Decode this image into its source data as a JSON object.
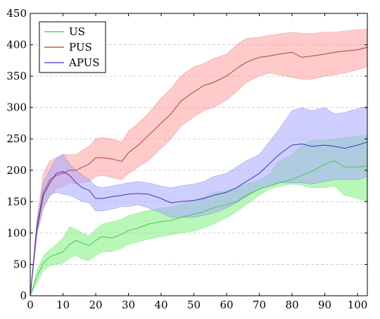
{
  "chart_data": {
    "type": "area",
    "title": "",
    "xlabel": "",
    "ylabel": "",
    "xlim": [
      0,
      103
    ],
    "ylim": [
      0,
      450
    ],
    "xticks": [
      0,
      10,
      20,
      30,
      40,
      50,
      60,
      70,
      80,
      90,
      100
    ],
    "yticks": [
      0,
      50,
      100,
      150,
      200,
      250,
      300,
      350,
      400,
      450
    ],
    "grid": "horizontal-dashed",
    "legend_position": "top-left",
    "series": [
      {
        "name": "US",
        "line_color": "#44cc44",
        "fill_color": "#7df07d",
        "x": [
          0,
          2,
          4,
          6,
          8,
          10,
          12,
          14,
          16,
          18,
          20,
          22,
          25,
          28,
          30,
          33,
          36,
          40,
          43,
          46,
          50,
          53,
          56,
          60,
          63,
          66,
          70,
          73,
          76,
          80,
          83,
          86,
          90,
          93,
          96,
          100,
          103
        ],
        "mean": [
          0,
          30,
          52,
          62,
          66,
          70,
          82,
          88,
          84,
          80,
          88,
          94,
          92,
          98,
          104,
          108,
          114,
          118,
          120,
          125,
          130,
          134,
          140,
          145,
          150,
          160,
          170,
          175,
          180,
          185,
          192,
          198,
          210,
          215,
          205,
          205,
          207
        ],
        "lower": [
          0,
          20,
          40,
          48,
          50,
          52,
          60,
          64,
          58,
          56,
          64,
          70,
          70,
          76,
          82,
          86,
          90,
          94,
          97,
          100,
          103,
          108,
          114,
          124,
          134,
          145,
          160,
          170,
          174,
          178,
          176,
          172,
          172,
          175,
          160,
          155,
          150
        ],
        "upper": [
          0,
          40,
          64,
          74,
          82,
          92,
          110,
          106,
          100,
          96,
          106,
          114,
          118,
          122,
          128,
          132,
          136,
          140,
          142,
          146,
          152,
          158,
          165,
          168,
          172,
          178,
          184,
          194,
          215,
          225,
          240,
          248,
          248,
          250,
          252,
          255,
          255
        ]
      },
      {
        "name": "PUS",
        "line_color": "#b04040",
        "fill_color": "#ff9e9e",
        "x": [
          0,
          2,
          4,
          6,
          8,
          10,
          12,
          14,
          16,
          18,
          20,
          22,
          25,
          28,
          30,
          33,
          36,
          40,
          43,
          46,
          50,
          53,
          56,
          60,
          63,
          66,
          70,
          73,
          76,
          80,
          83,
          86,
          90,
          93,
          96,
          100,
          103
        ],
        "mean": [
          0,
          110,
          165,
          185,
          192,
          195,
          200,
          200,
          205,
          210,
          220,
          220,
          218,
          214,
          228,
          240,
          255,
          275,
          290,
          310,
          325,
          335,
          340,
          350,
          362,
          372,
          380,
          382,
          385,
          388,
          380,
          382,
          385,
          388,
          390,
          392,
          396
        ],
        "lower": [
          0,
          100,
          140,
          160,
          170,
          175,
          180,
          178,
          180,
          182,
          190,
          192,
          188,
          185,
          195,
          205,
          215,
          235,
          250,
          270,
          285,
          295,
          300,
          312,
          325,
          340,
          350,
          355,
          352,
          348,
          345,
          345,
          350,
          352,
          355,
          360,
          365
        ],
        "upper": [
          0,
          120,
          195,
          215,
          220,
          225,
          225,
          225,
          232,
          238,
          250,
          252,
          250,
          245,
          262,
          275,
          290,
          315,
          330,
          350,
          365,
          370,
          378,
          385,
          400,
          410,
          412,
          415,
          417,
          420,
          418,
          418,
          420,
          420,
          422,
          424,
          425
        ]
      },
      {
        "name": "APUS",
        "line_color": "#3838c0",
        "fill_color": "#a8a8ff",
        "x": [
          0,
          2,
          4,
          6,
          8,
          10,
          12,
          14,
          16,
          18,
          20,
          22,
          25,
          28,
          30,
          33,
          36,
          40,
          43,
          46,
          50,
          53,
          56,
          60,
          63,
          66,
          70,
          73,
          76,
          80,
          83,
          86,
          90,
          93,
          96,
          100,
          103
        ],
        "mean": [
          0,
          105,
          160,
          180,
          195,
          198,
          192,
          180,
          172,
          168,
          155,
          155,
          158,
          160,
          162,
          163,
          162,
          155,
          148,
          150,
          152,
          155,
          160,
          165,
          172,
          182,
          195,
          210,
          225,
          240,
          242,
          238,
          240,
          238,
          235,
          240,
          245
        ],
        "lower": [
          0,
          95,
          140,
          160,
          165,
          162,
          160,
          155,
          150,
          148,
          135,
          135,
          138,
          142,
          142,
          145,
          140,
          132,
          125,
          125,
          125,
          128,
          132,
          140,
          148,
          158,
          170,
          175,
          180,
          180,
          180,
          178,
          182,
          185,
          185,
          185,
          190
        ],
        "upper": [
          0,
          115,
          180,
          200,
          220,
          225,
          210,
          200,
          192,
          185,
          175,
          172,
          175,
          178,
          180,
          182,
          180,
          175,
          172,
          175,
          178,
          182,
          190,
          195,
          205,
          215,
          225,
          245,
          265,
          295,
          300,
          295,
          300,
          290,
          292,
          298,
          302
        ]
      }
    ]
  }
}
